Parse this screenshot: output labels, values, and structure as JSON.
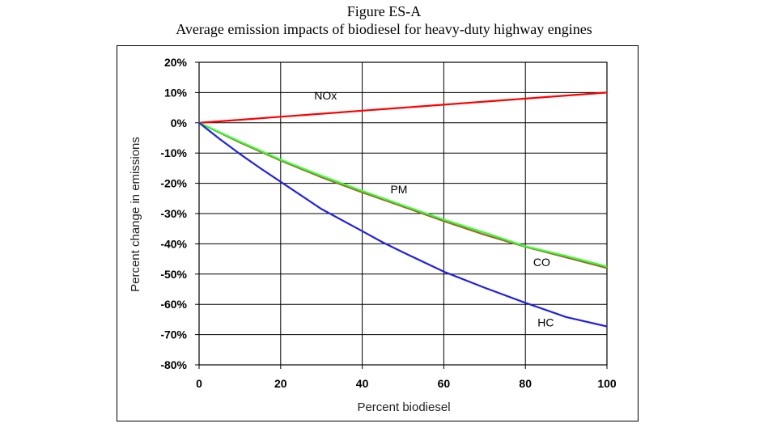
{
  "figure": {
    "title": "Figure ES-A",
    "subtitle": "Average emission impacts of biodiesel for heavy-duty highway engines"
  },
  "chart_data": {
    "type": "line",
    "xlabel": "Percent biodiesel",
    "ylabel": "Percent change in emissions",
    "xlim": [
      0,
      100
    ],
    "ylim": [
      -80,
      20
    ],
    "x_ticks": [
      "0",
      "20",
      "40",
      "60",
      "80",
      "100"
    ],
    "y_ticks": [
      "20%",
      "10%",
      "0%",
      "-10%",
      "-20%",
      "-30%",
      "-40%",
      "-50%",
      "-60%",
      "-70%",
      "-80%"
    ],
    "grid": true,
    "series": [
      {
        "name": "NOx",
        "color": "#ff0000",
        "x": [
          0,
          10,
          20,
          30,
          40,
          50,
          60,
          70,
          80,
          90,
          100
        ],
        "y": [
          0,
          1,
          2,
          3,
          4,
          5,
          6,
          7,
          8,
          9,
          10
        ]
      },
      {
        "name": "PM",
        "color": "#a0672a",
        "x": [
          0,
          10,
          20,
          30,
          40,
          50,
          60,
          70,
          80,
          90,
          100
        ],
        "y": [
          0,
          -6.5,
          -12.5,
          -18,
          -23,
          -27.7,
          -32.5,
          -37,
          -41,
          -44.5,
          -48
        ]
      },
      {
        "name": "CO",
        "color": "#33ff33",
        "x": [
          0,
          10,
          20,
          30,
          40,
          50,
          60,
          70,
          80,
          90,
          100
        ],
        "y": [
          0,
          -6.2,
          -12.2,
          -17.5,
          -22.5,
          -27.3,
          -32,
          -36.3,
          -40.8,
          -44,
          -47.5
        ]
      },
      {
        "name": "HC",
        "color": "#2222dd",
        "x": [
          0,
          5,
          10,
          15,
          20,
          30,
          40,
          45,
          50,
          60,
          70,
          80,
          90,
          100
        ],
        "y": [
          0,
          -5.3,
          -10.3,
          -15,
          -19.5,
          -28.5,
          -35.8,
          -39.5,
          -42.8,
          -49.2,
          -54.5,
          -59.5,
          -64.2,
          -67.3
        ]
      }
    ]
  }
}
